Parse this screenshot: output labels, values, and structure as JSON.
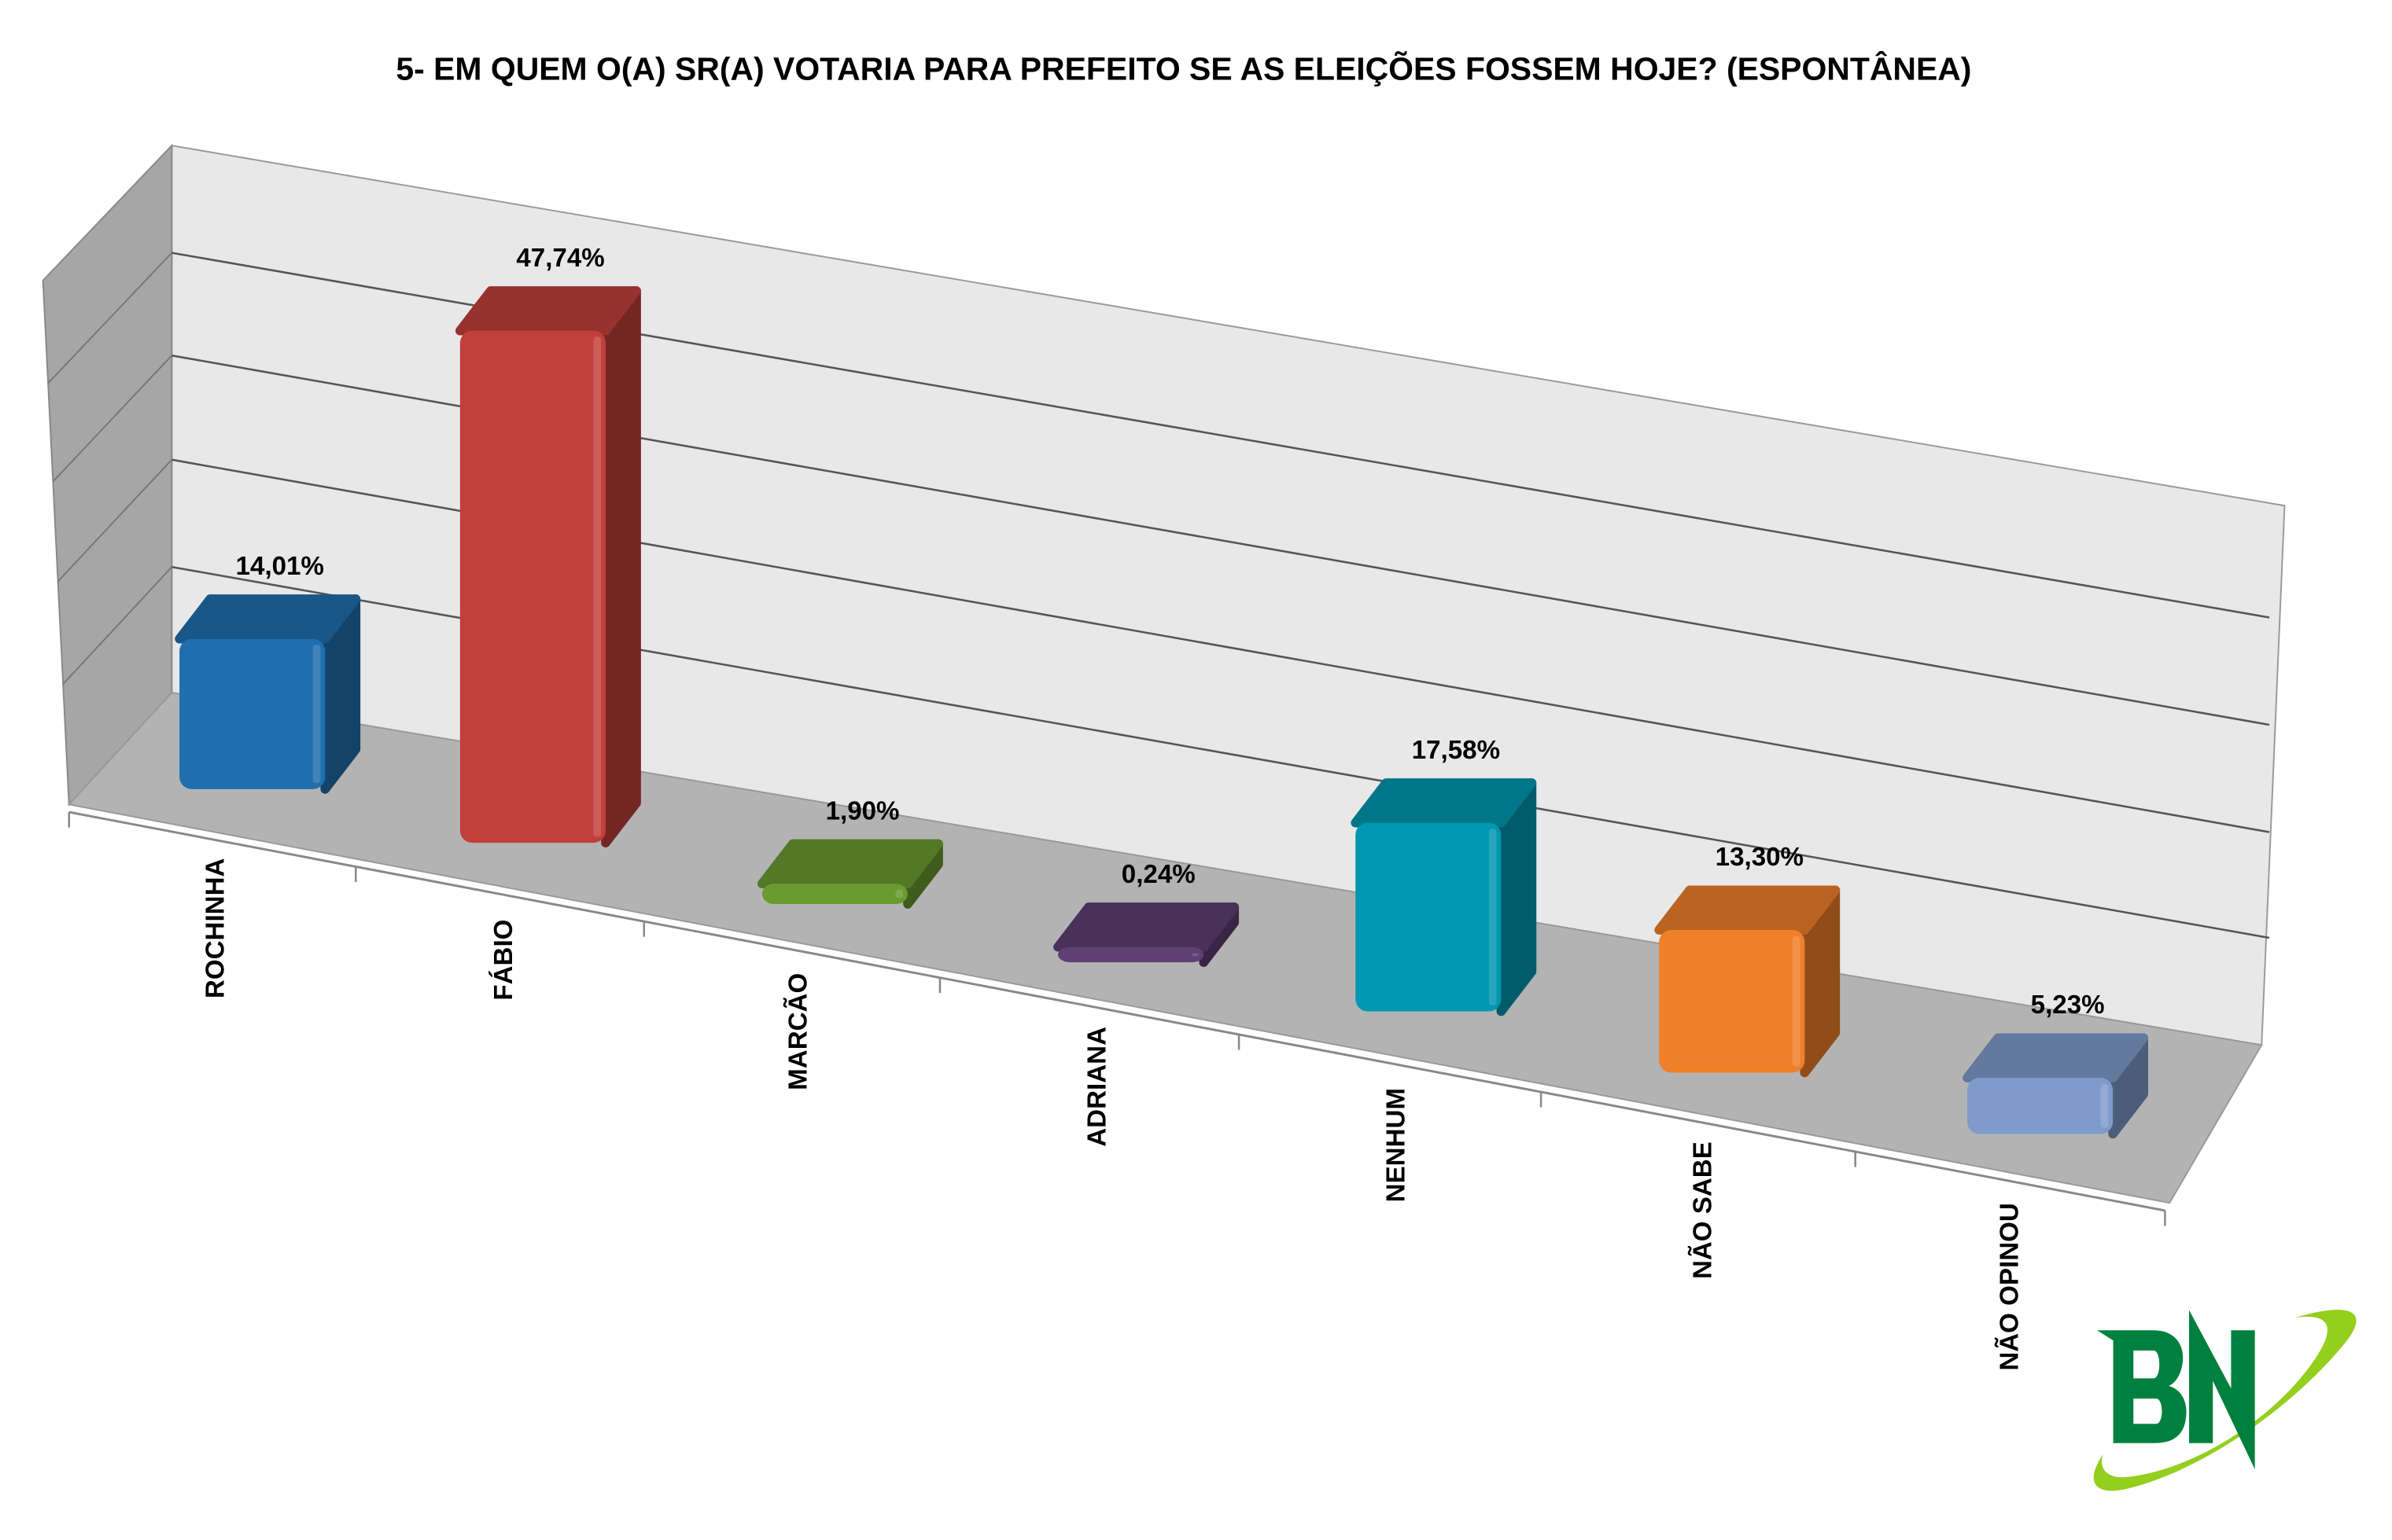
{
  "chart_data": {
    "type": "bar",
    "title": "5- EM QUEM O(A) SR(A) VOTARIA PARA PREFEITO SE AS ELEIÇÕES FOSSEM HOJE? (ESPONTÂNEA)",
    "categories": [
      "ROCHINHA",
      "FÁBIO",
      "MARCÃO",
      "ADRIANA",
      "NENHUM",
      "NÃO SABE",
      "NÃO OPINOU"
    ],
    "values": [
      14.01,
      47.74,
      1.9,
      0.24,
      17.58,
      13.3,
      5.23
    ],
    "data_labels": [
      "14,01%",
      "47,74%",
      "1,90%",
      "0,24%",
      "17,58%",
      "13,30%",
      "5,23%"
    ],
    "colors": [
      "#1f6fae",
      "#c2403b",
      "#6b9a31",
      "#5f3f74",
      "#0097b0",
      "#f07f2a",
      "#7f9bcb"
    ],
    "xlabel": "",
    "ylabel": "",
    "ylim": [
      0,
      50
    ],
    "grid": true,
    "style": "3d-column"
  },
  "logo": {
    "text": "BN",
    "green": "#00803f",
    "lime": "#94cf1e"
  }
}
